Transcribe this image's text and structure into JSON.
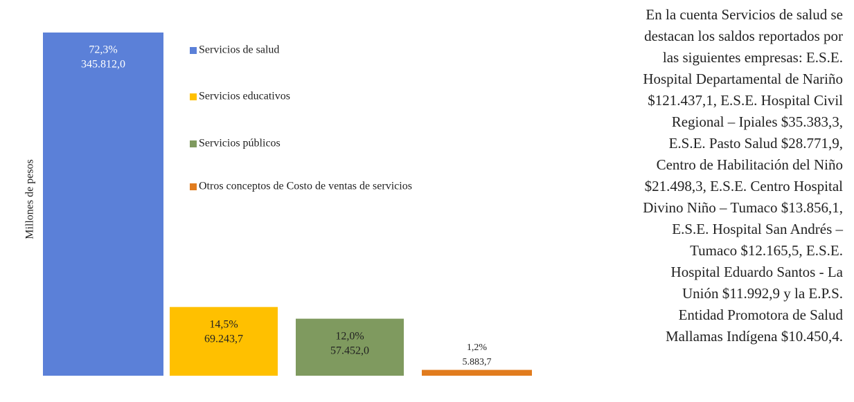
{
  "chart_data": {
    "type": "bar",
    "y_axis_label": "Millones de pesos",
    "categories": [
      "Servicios de salud",
      "Servicios educativos",
      "Servicios públicos",
      "Otros conceptos de Costo de ventas de servicios"
    ],
    "values": [
      345812.0,
      69243.7,
      57452.0,
      5883.7
    ],
    "value_labels": [
      "345.812,0",
      "69.243,7",
      "57.452,0",
      "5.883,7"
    ],
    "percentages": [
      72.3,
      14.5,
      12.0,
      1.2
    ],
    "percentage_labels": [
      "72,3%",
      "14,5%",
      "12,0%",
      "1,2%"
    ],
    "colors": [
      "#5b80d8",
      "#ffc000",
      "#7f9a5f",
      "#e17c1e"
    ],
    "legend": "right"
  },
  "side_text": {
    "lines": [
      "En la cuenta Servicios de salud se",
      "destacan los saldos reportados por",
      "las siguientes empresas: E.S.E.",
      "Hospital Departamental de Nariño",
      "$121.437,1, E.S.E. Hospital Civil",
      "Regional – Ipiales $35.383,3,",
      "E.S.E. Pasto Salud $28.771,9,",
      "Centro de Habilitación del Niño",
      "$21.498,3, E.S.E. Centro Hospital",
      "Divino Niño – Tumaco $13.856,1,",
      "E.S.E. Hospital San Andrés –",
      "Tumaco $12.165,5, E.S.E.",
      "Hospital Eduardo Santos - La",
      "Unión $11.992,9 y la E.P.S.",
      "Entidad Promotora de Salud",
      "Mallamas Indígena $10.450,4."
    ]
  }
}
